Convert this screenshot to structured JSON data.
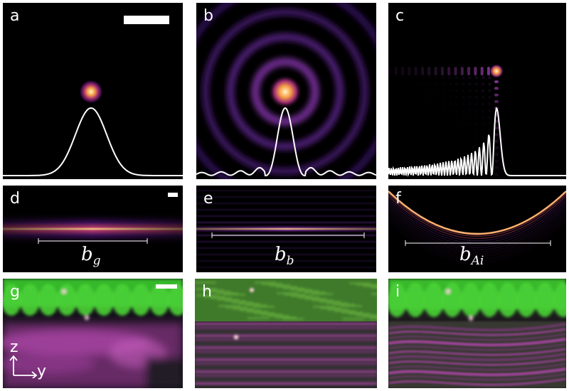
{
  "panels": {
    "a": "a",
    "b": "b",
    "c": "c",
    "d": "d",
    "e": "e",
    "f": "f",
    "g": "g",
    "h": "h",
    "i": "i"
  },
  "beam_labels": {
    "gaussian": {
      "base": "b",
      "sub": "g"
    },
    "bessel": {
      "base": "b",
      "sub": "b"
    },
    "airy": {
      "base": "b",
      "sub": "Ai"
    }
  },
  "axes": {
    "z": "z",
    "y": "y"
  },
  "colors": {
    "green_channel": "#3fd12a",
    "magenta_channel": "#d84fd0",
    "beam_hot": "#fff2a8",
    "beam_mid": "#f07a3c",
    "beam_low": "#6a1e8e"
  }
}
